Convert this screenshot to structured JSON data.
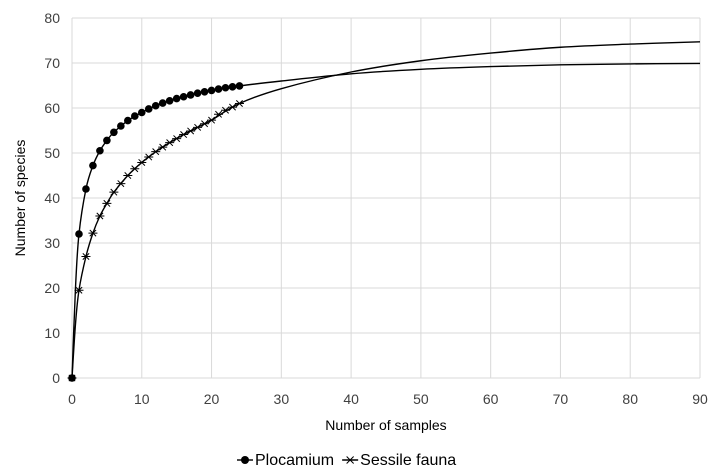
{
  "chart_data": {
    "type": "scatter",
    "xlabel": "Number of samples",
    "ylabel": "Number of species",
    "xlim": [
      0,
      90
    ],
    "ylim": [
      0,
      80
    ],
    "x_ticks": [
      0,
      10,
      20,
      30,
      40,
      50,
      60,
      70,
      80,
      90
    ],
    "y_ticks": [
      0,
      10,
      20,
      30,
      40,
      50,
      60,
      70,
      80
    ],
    "grid": true,
    "legend_position": "bottom",
    "series": [
      {
        "name": "Plocamium",
        "marker": "filled-circle",
        "color": "#000000",
        "x": [
          0,
          1,
          2,
          3,
          4,
          5,
          6,
          7,
          8,
          9,
          10,
          11,
          12,
          13,
          14,
          15,
          16,
          17,
          18,
          19,
          20,
          21,
          22,
          23,
          24
        ],
        "y": [
          0,
          32,
          42,
          47.2,
          50.5,
          52.8,
          54.6,
          56,
          57.2,
          58.2,
          59,
          59.8,
          60.5,
          61.1,
          61.6,
          62.1,
          62.5,
          62.9,
          63.3,
          63.6,
          63.9,
          64.2,
          64.5,
          64.7,
          64.9
        ],
        "fitted_curve": {
          "x": [
            0,
            0.5,
            1,
            2,
            3,
            4,
            5,
            6,
            8,
            10,
            12,
            14,
            16,
            18,
            20,
            24,
            30,
            40,
            50,
            60,
            70,
            80,
            90
          ],
          "y": [
            0,
            20,
            32,
            42,
            47.2,
            50.5,
            52.8,
            54.6,
            57.2,
            59,
            60.5,
            61.6,
            62.5,
            63.3,
            63.9,
            64.9,
            66,
            67.6,
            68.6,
            69.2,
            69.6,
            69.8,
            69.9
          ]
        }
      },
      {
        "name": "Sessile fauna",
        "marker": "asterisk",
        "color": "#000000",
        "x": [
          0,
          1,
          2,
          3,
          4,
          5,
          6,
          7,
          8,
          9,
          10,
          11,
          12,
          13,
          14,
          15,
          16,
          17,
          18,
          19,
          20,
          21,
          22,
          23,
          24
        ],
        "y": [
          0,
          19.5,
          27,
          32.2,
          36,
          38.8,
          41.3,
          43.2,
          45,
          46.5,
          47.9,
          49.1,
          50.3,
          51.3,
          52.3,
          53.2,
          54.1,
          54.9,
          55.7,
          56.5,
          57.3,
          58.6,
          59.5,
          60.2,
          61
        ],
        "fitted_curve": {
          "x": [
            0,
            0.5,
            1,
            2,
            3,
            4,
            5,
            6,
            8,
            10,
            12,
            14,
            16,
            18,
            20,
            24,
            30,
            40,
            50,
            60,
            70,
            80,
            90
          ],
          "y": [
            0,
            12,
            19.5,
            27,
            32.2,
            36,
            38.8,
            41.3,
            45,
            47.9,
            50.3,
            52.3,
            54.1,
            55.7,
            57.3,
            61,
            64.3,
            68,
            70.5,
            72.2,
            73.5,
            74.2,
            74.7
          ]
        }
      }
    ]
  }
}
